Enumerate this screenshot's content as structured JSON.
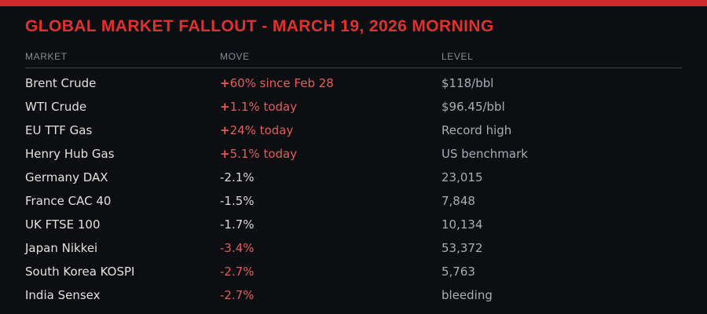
{
  "header": {
    "title": "GLOBAL MARKET FALLOUT - MARCH 19, 2026 MORNING"
  },
  "table": {
    "columns": [
      {
        "label": "MARKET"
      },
      {
        "label": "MOVE"
      },
      {
        "label": "LEVEL"
      }
    ],
    "rows": [
      {
        "market": "Brent Crude",
        "move": "+60% since Feb 28",
        "move_color": "red",
        "level": "$118/bbl"
      },
      {
        "market": "WTI Crude",
        "move": "+1.1% today",
        "move_color": "red",
        "level": "$96.45/bbl"
      },
      {
        "market": "EU TTF Gas",
        "move": "+24% today",
        "move_color": "red",
        "level": "Record high"
      },
      {
        "market": "Henry Hub Gas",
        "move": "+5.1% today",
        "move_color": "red",
        "level": "US benchmark"
      },
      {
        "market": "Germany DAX",
        "move": "-2.1%",
        "move_color": "gray",
        "level": "23,015"
      },
      {
        "market": "France CAC 40",
        "move": "-1.5%",
        "move_color": "gray",
        "level": "7,848"
      },
      {
        "market": "UK FTSE 100",
        "move": "-1.7%",
        "move_color": "gray",
        "level": "10,134"
      },
      {
        "market": "Japan Nikkei",
        "move": "-3.4%",
        "move_color": "red",
        "level": "53,372"
      },
      {
        "market": "South Korea KOSPI",
        "move": "-2.7%",
        "move_color": "red",
        "level": "5,763"
      },
      {
        "market": "India Sensex",
        "move": "-2.7%",
        "move_color": "red",
        "level": "bleeding"
      }
    ]
  },
  "colors": {
    "background": "#0d0e11",
    "accent_bar_red": "#d22b2e",
    "title_red": "#e03131",
    "move_red": "#e05e5e",
    "text_light": "#e3e1de",
    "level_dim_gray": "#a9adb4",
    "header_gray": "#878b94",
    "divider": "#3e424c"
  }
}
